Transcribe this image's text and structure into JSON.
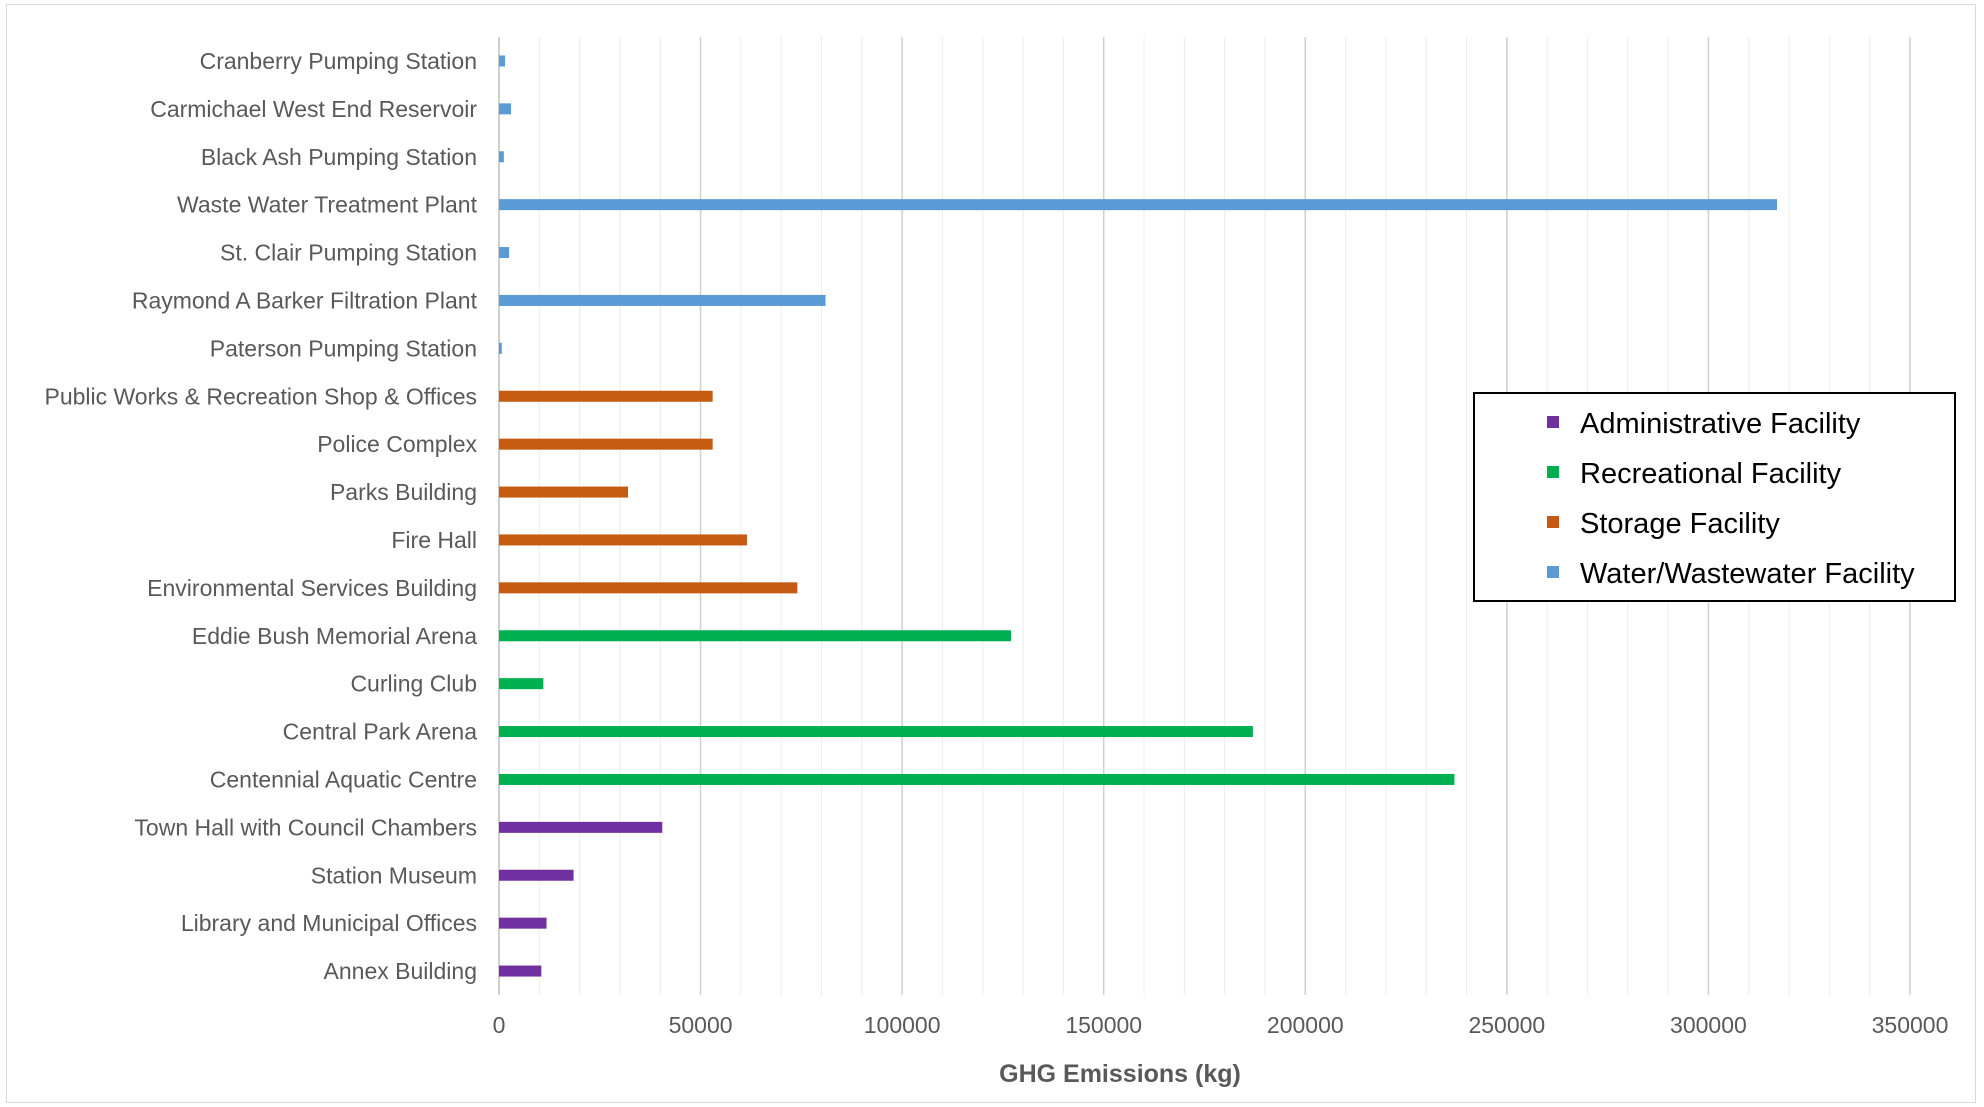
{
  "chart_data": {
    "type": "bar",
    "orientation": "horizontal",
    "title": "",
    "xlabel": "GHG Emissions (kg)",
    "ylabel": "",
    "xlim": [
      0,
      350000
    ],
    "major_ticks": [
      0,
      50000,
      100000,
      150000,
      200000,
      250000,
      300000,
      350000
    ],
    "major_tick_labels": [
      "0",
      "50000",
      "100000",
      "150000",
      "200000",
      "250000",
      "300000",
      "350000"
    ],
    "minor_tick_step": 10000,
    "grid": true,
    "legend_position": "right",
    "colors": {
      "Administrative Facility": "#7030a0",
      "Recreational Facility": "#00b050",
      "Storage Facility": "#c55a11",
      "Water/Wastewater Facility": "#5b9bd5"
    },
    "legend": [
      "Administrative Facility",
      "Recreational Facility",
      "Storage Facility",
      "Water/Wastewater Facility"
    ],
    "categories": [
      "Cranberry Pumping Station",
      "Carmichael West End Reservoir",
      "Black Ash Pumping Station",
      "Waste Water Treatment Plant",
      "St. Clair Pumping Station",
      "Raymond A Barker Filtration Plant",
      "Paterson Pumping Station",
      "Public Works & Recreation Shop & Offices",
      "Police Complex",
      "Parks Building",
      "Fire Hall",
      "Environmental Services Building",
      "Eddie Bush Memorial Arena",
      "Curling Club",
      "Central Park Arena",
      "Centennial Aquatic Centre",
      "Town Hall with Council Chambers",
      "Station Museum",
      "Library and Municipal Offices",
      "Annex Building"
    ],
    "values": [
      1500,
      3000,
      1200,
      317000,
      2500,
      81000,
      700,
      53000,
      53000,
      32000,
      61500,
      74000,
      127000,
      11000,
      187000,
      237000,
      40500,
      18500,
      11800,
      10500
    ],
    "category_series": [
      "Water/Wastewater Facility",
      "Water/Wastewater Facility",
      "Water/Wastewater Facility",
      "Water/Wastewater Facility",
      "Water/Wastewater Facility",
      "Water/Wastewater Facility",
      "Water/Wastewater Facility",
      "Storage Facility",
      "Storage Facility",
      "Storage Facility",
      "Storage Facility",
      "Storage Facility",
      "Recreational Facility",
      "Recreational Facility",
      "Recreational Facility",
      "Recreational Facility",
      "Administrative Facility",
      "Administrative Facility",
      "Administrative Facility",
      "Administrative Facility"
    ]
  }
}
